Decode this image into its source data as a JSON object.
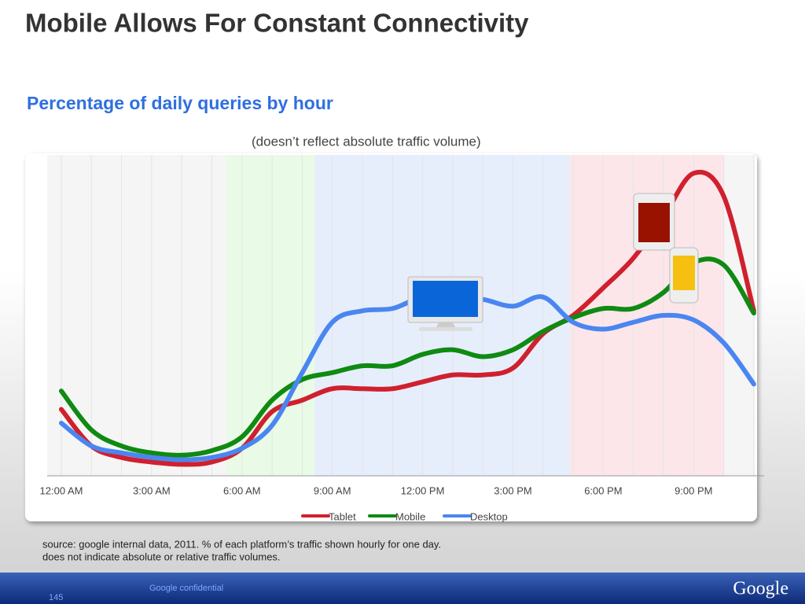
{
  "slide": {
    "title": "Mobile Allows For Constant Connectivity",
    "source": [
      "source: google internal data, 2011.  % of each platform’s traffic shown hourly for one day.",
      "does not indicate absolute or relative traffic volumes."
    ],
    "confidential": "Google confidential",
    "page": "145",
    "logo": "Google"
  },
  "chart_data": {
    "type": "line",
    "title": "Percentage of daily queries by hour",
    "subtitle": "(doesn’t reflect absolute traffic volume)",
    "categories": [
      "12:00 AM",
      null,
      null,
      "3:00 AM",
      null,
      null,
      "6:00 AM",
      null,
      null,
      "9:00 AM",
      null,
      null,
      "12:00 PM",
      null,
      null,
      "3:00 PM",
      null,
      null,
      "6:00 PM",
      null,
      null,
      "9:00 PM",
      null,
      null
    ],
    "ylim": [
      0,
      14
    ],
    "grid": true,
    "series": [
      {
        "name": "Tablet",
        "color": "#d0202e",
        "values": [
          2.9,
          1.3,
          0.8,
          0.6,
          0.5,
          0.6,
          1.2,
          2.8,
          3.3,
          3.8,
          3.8,
          3.8,
          4.1,
          4.4,
          4.4,
          4.7,
          6.2,
          7.0,
          8.2,
          9.5,
          11.3,
          13.2,
          12.2,
          7.2
        ]
      },
      {
        "name": "Mobile",
        "color": "#0f8a12",
        "values": [
          3.7,
          2.0,
          1.3,
          1.0,
          0.9,
          1.1,
          1.7,
          3.3,
          4.2,
          4.5,
          4.8,
          4.8,
          5.3,
          5.5,
          5.2,
          5.5,
          6.3,
          6.9,
          7.3,
          7.3,
          8.0,
          9.3,
          9.2,
          7.1
        ]
      },
      {
        "name": "Desktop",
        "color": "#4a86f0",
        "values": [
          2.3,
          1.3,
          1.0,
          0.8,
          0.7,
          0.8,
          1.2,
          2.2,
          4.5,
          6.7,
          7.2,
          7.3,
          7.8,
          7.8,
          7.7,
          7.4,
          7.8,
          6.7,
          6.4,
          6.7,
          7.0,
          6.8,
          5.8,
          4.0
        ]
      }
    ]
  }
}
